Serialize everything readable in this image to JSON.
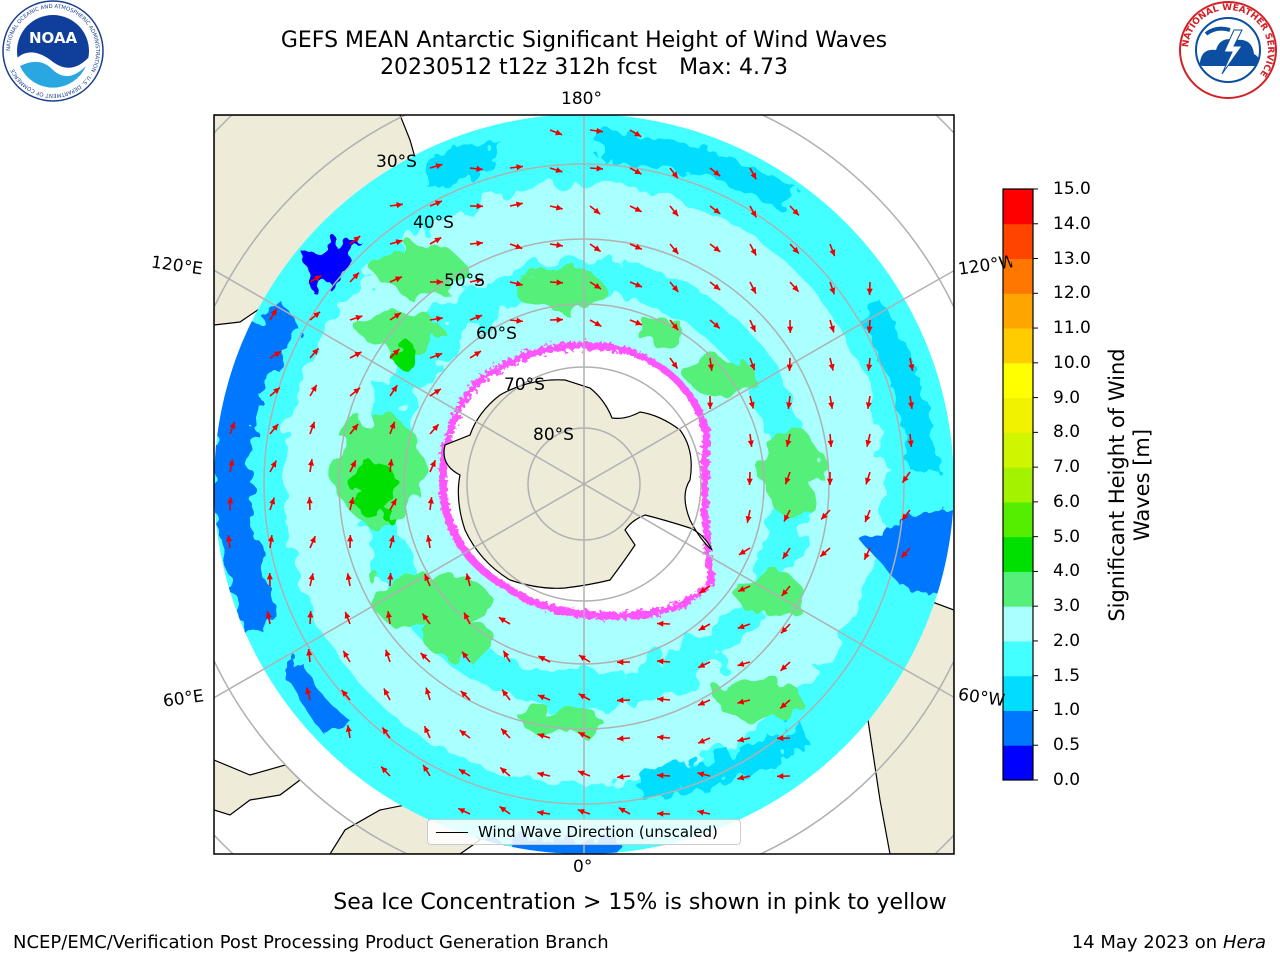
{
  "header": {
    "title_line1": "GEFS MEAN Antarctic Significant Height of Wind Waves",
    "title_date_run": "20230512 t12z 312h fcst",
    "title_max": "Max: 4.73"
  },
  "logos": {
    "noaa": {
      "text": "NOAA",
      "ring_text": "NATIONAL OCEANIC AND ATMOSPHERIC ADMINISTRATION · U.S. DEPARTMENT OF COMMERCE"
    },
    "nws": {
      "ring_text": "NATIONAL WEATHER SERVICE"
    }
  },
  "map": {
    "projection": "south-polar-stereographic",
    "longitude_labels": {
      "top": "180°",
      "bottom": "0°",
      "upper_left": "120°E",
      "upper_right": "120°W",
      "lower_left": "60°E",
      "lower_right": "60°W"
    },
    "latitude_labels": [
      "30°S",
      "40°S",
      "50°S",
      "60°S",
      "70°S",
      "80°S"
    ],
    "colors": {
      "land": "#eeebd9",
      "coast": "#000000",
      "grid": "#b0b0b0",
      "arrow": "#ee0000",
      "sea_ice_low": "#ff55ff",
      "sea_ice_high": "#ffcc00"
    }
  },
  "colorbar": {
    "title": "Significant Height of Wind Waves [m]",
    "ticks": [
      "0.0",
      "0.5",
      "1.0",
      "1.5",
      "2.0",
      "3.0",
      "4.0",
      "5.0",
      "6.0",
      "7.0",
      "8.0",
      "9.0",
      "10.0",
      "11.0",
      "12.0",
      "13.0",
      "14.0",
      "15.0"
    ],
    "colors": [
      "#0000ff",
      "#0077ff",
      "#00ddff",
      "#44ffff",
      "#aaffff",
      "#55f07a",
      "#00e000",
      "#55ee00",
      "#a4f200",
      "#d0f500",
      "#f0f200",
      "#ffff00",
      "#ffcc00",
      "#ffa500",
      "#ff7700",
      "#ff4400",
      "#ff0000"
    ]
  },
  "legend": {
    "label": "Wind Wave Direction (unscaled)"
  },
  "note": "Sea Ice Concentration > 15% is shown in pink to yellow",
  "footer": {
    "left": "NCEP/EMC/Verification Post Processing Product Generation Branch",
    "date": "14 May 2023 on",
    "host": "Hera"
  }
}
